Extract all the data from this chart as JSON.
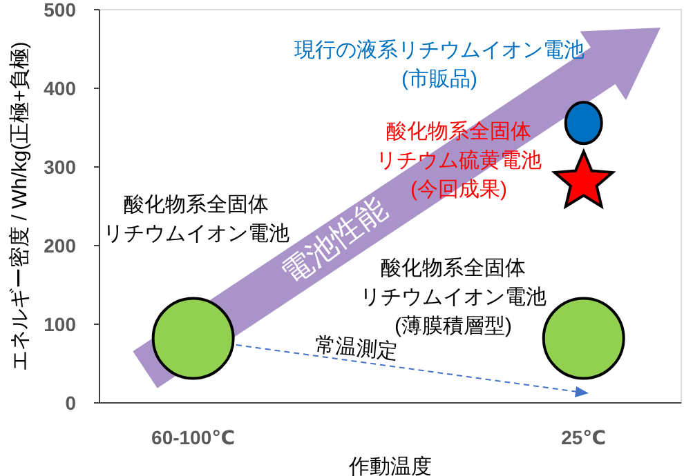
{
  "chart_data": {
    "type": "scatter",
    "xlabel": "作動温度",
    "ylabel": "エネルギー密度 / Wh/kg(正極+負極)",
    "categories": [
      "60-100℃",
      "25℃"
    ],
    "ylim": [
      0,
      500
    ],
    "yticks": [
      0,
      100,
      200,
      300,
      400,
      500
    ],
    "grid": false,
    "series": [
      {
        "color": "#92d050",
        "marker": "circle",
        "values": [
          82,
          82
        ]
      },
      {
        "color": "#0070c0",
        "marker": "circle",
        "values": [
          null,
          356
        ]
      },
      {
        "color": "#ff0000",
        "marker": "star",
        "values": [
          null,
          281
        ]
      }
    ],
    "annotations": [
      "現行の液系リチウムイオン電池(市販品)",
      "酸化物系全固体リチウム硫黄電池(今回成果)",
      "酸化物系全固体リチウムイオン電池",
      "酸化物系全固体リチウムイオン電池(薄膜積層型)",
      "常温測定",
      "電池性能"
    ]
  }
}
